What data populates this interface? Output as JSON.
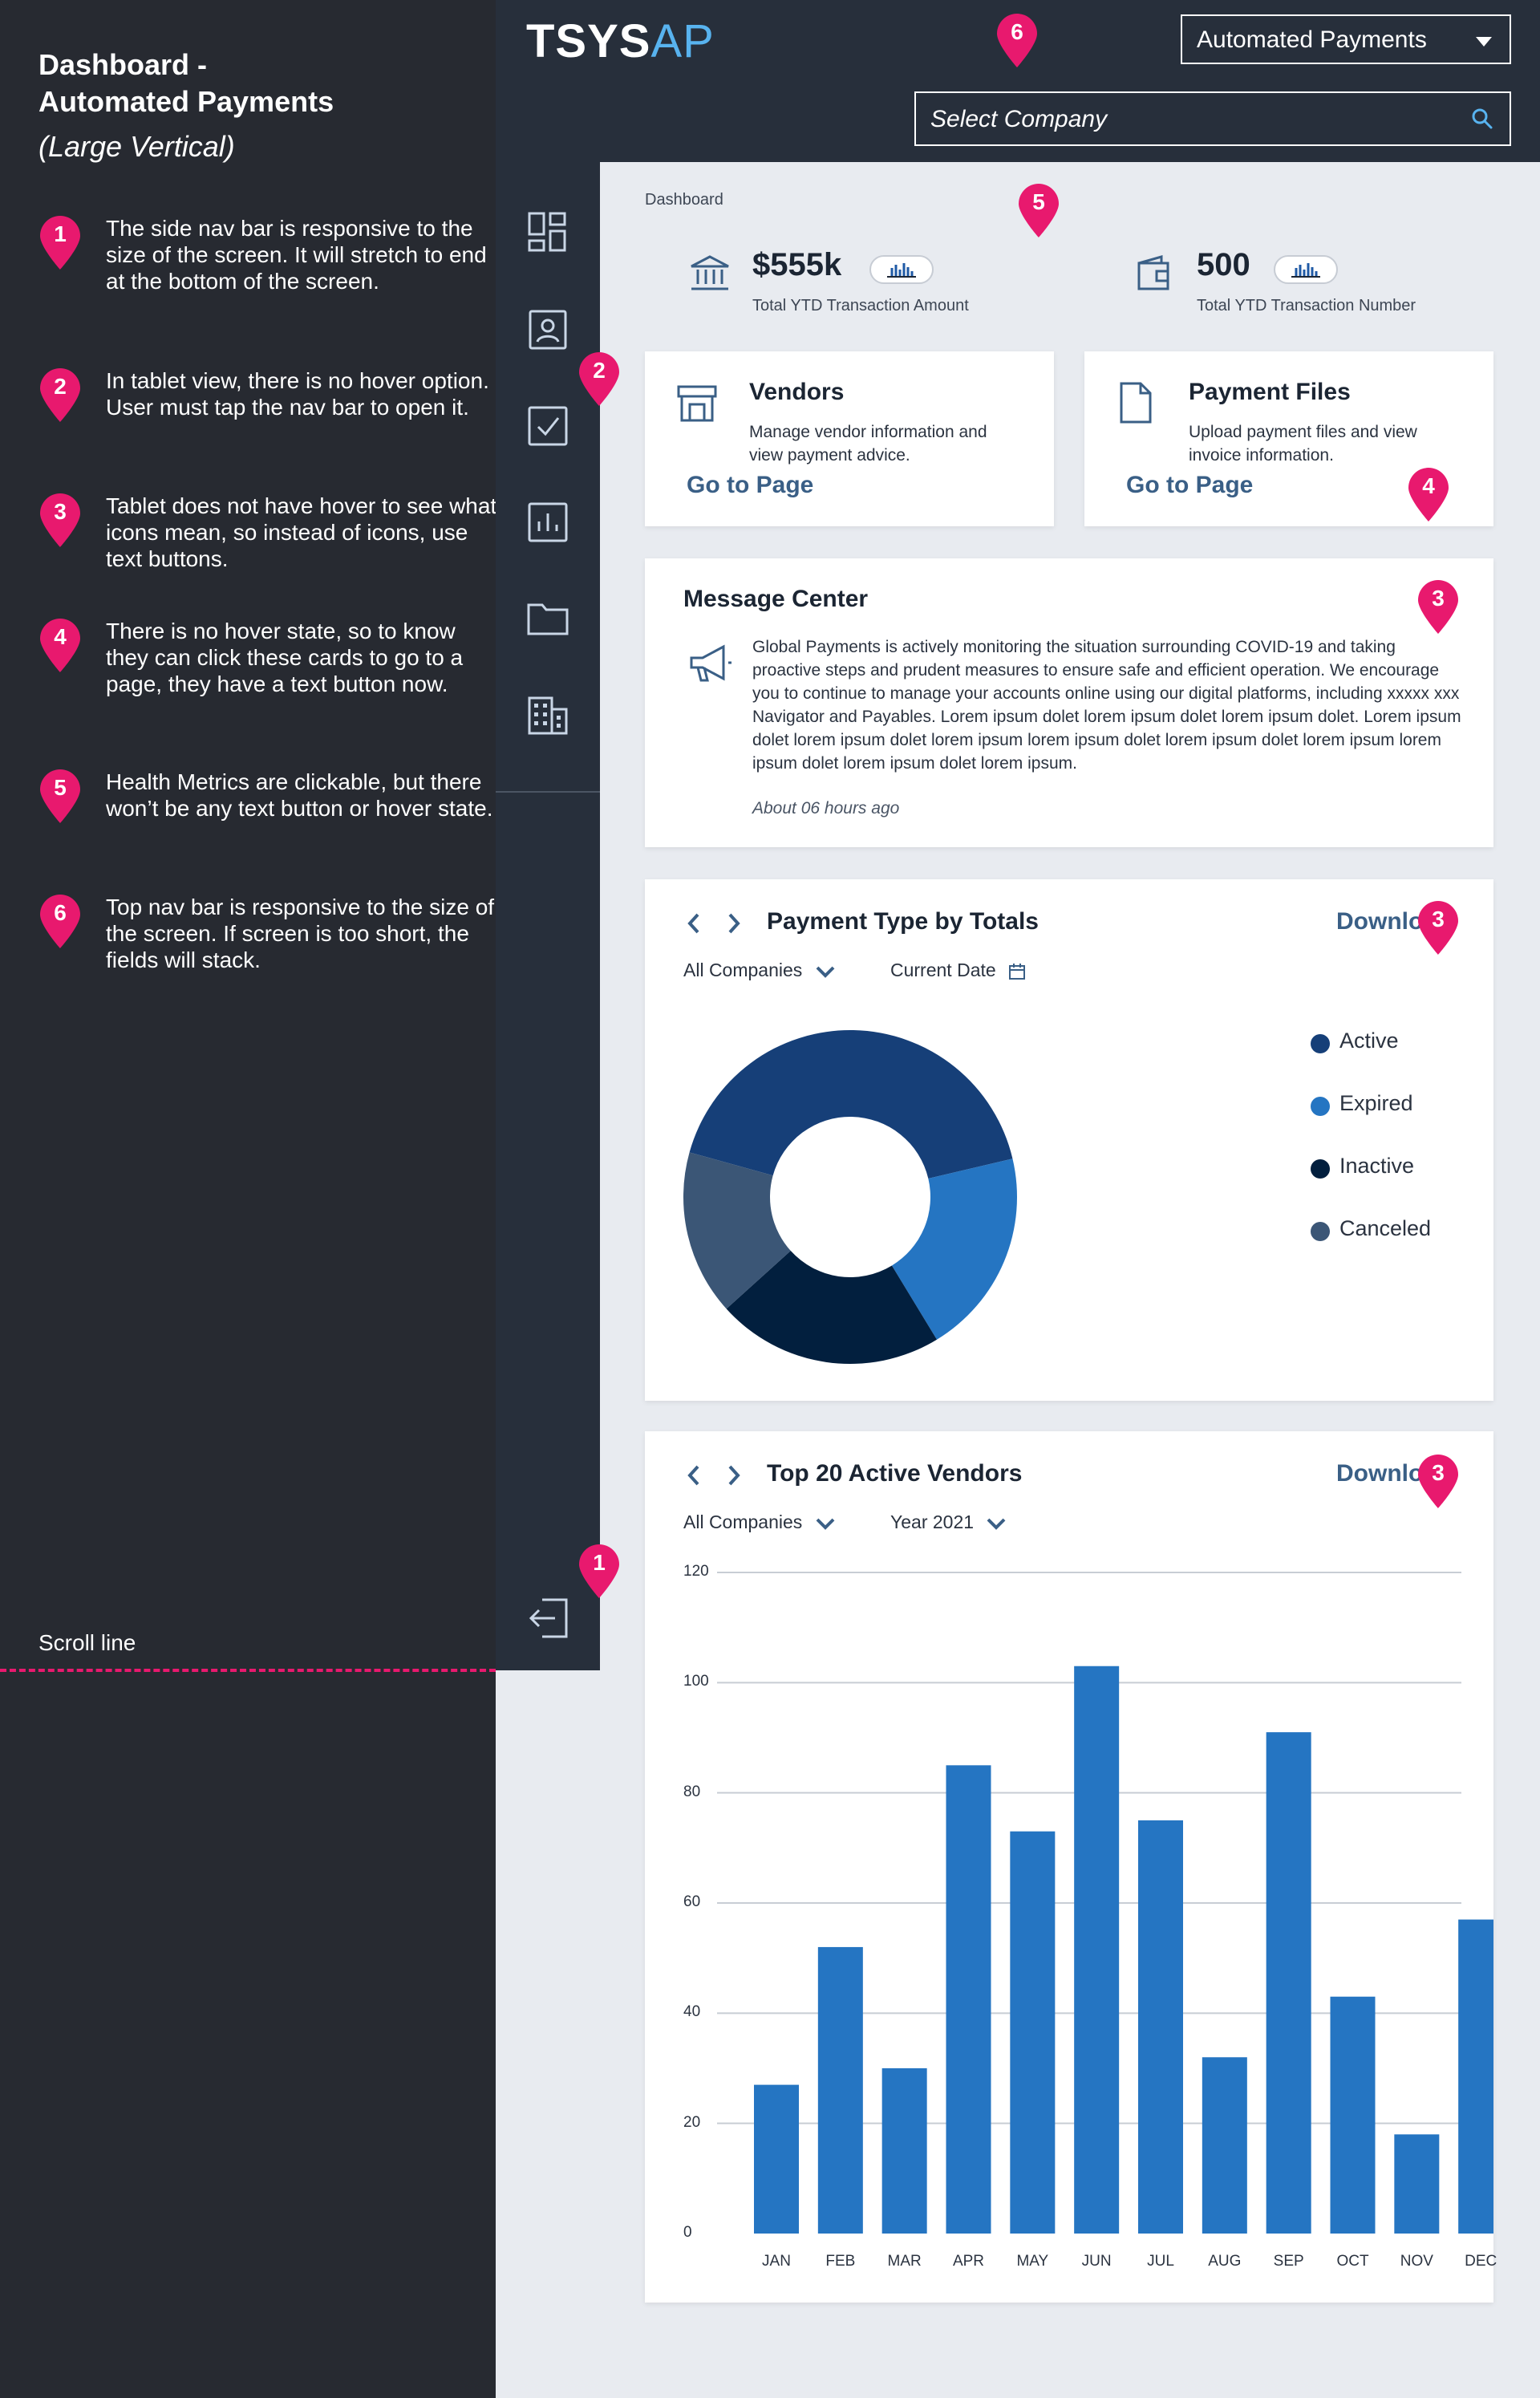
{
  "annotation_panel": {
    "title_line1": "Dashboard -",
    "title_line2": "Automated Payments",
    "subtitle": "(Large Vertical)",
    "notes": [
      {
        "num": "1",
        "text": "The side nav bar is responsive to the size of the screen. It will stretch to end at the bottom of the screen."
      },
      {
        "num": "2",
        "text": "In tablet view, there is no hover option. User must tap the nav bar to open it."
      },
      {
        "num": "3",
        "text": "Tablet does not have hover to see what icons mean, so instead of icons, use text buttons."
      },
      {
        "num": "4",
        "text": "There is no hover state, so to know they can click these cards to go to a page, they have a text button now."
      },
      {
        "num": "5",
        "text": "Health Metrics are clickable, but there won’t be any text button or hover state."
      },
      {
        "num": "6",
        "text": "Top nav bar is responsive to the size of the screen. If screen is too short, the fields will stack."
      }
    ],
    "scroll_label": "Scroll line",
    "pin_color": "#e8196e"
  },
  "markers": [
    "1",
    "2",
    "3",
    "4",
    "5",
    "6"
  ],
  "header": {
    "logo_primary": "TSYS",
    "logo_accent": "AP",
    "app_dropdown": "Automated Payments",
    "search_placeholder": "Select Company"
  },
  "sidenav": {
    "items": [
      "dashboard-icon",
      "contacts-icon",
      "checkbox-icon",
      "reports-icon",
      "folder-icon",
      "building-icon"
    ],
    "logout": "logout-icon"
  },
  "breadcrumb": "Dashboard",
  "metrics": [
    {
      "value": "$555k",
      "label": "Total YTD Transaction Amount",
      "icon": "bank-icon"
    },
    {
      "value": "500",
      "label": "Total YTD Transaction Number",
      "icon": "wallet-icon"
    }
  ],
  "cards": [
    {
      "title": "Vendors",
      "desc": "Manage vendor information and view payment advice.",
      "link": "Go to Page",
      "icon": "store-icon"
    },
    {
      "title": "Payment Files",
      "desc": "Upload payment files and view invoice information.",
      "link": "Go to Page",
      "icon": "file-icon"
    }
  ],
  "message_center": {
    "title": "Message Center",
    "body": "Global Payments is actively monitoring the situation surrounding COVID-19 and taking proactive steps and prudent measures to ensure safe and efficient operation. We encourage you to continue to manage your accounts online using our digital platforms, including xxxxx xxx Navigator and Payables. Lorem ipsum dolet lorem ipsum dolet lorem ipsum dolet. Lorem ipsum dolet lorem ipsum dolet lorem ipsum lorem ipsum dolet lorem ipsum dolet lorem ipsum lorem ipsum dolet lorem ipsum dolet lorem ipsum.",
    "time": "About 06 hours ago"
  },
  "payment_type": {
    "title": "Payment Type by Totals",
    "download": "Downlo",
    "filter1": "All Companies",
    "filter2": "Current Date"
  },
  "top_vendors": {
    "title": "Top 20 Active Vendors",
    "download": "Downlo",
    "filter1": "All Companies",
    "filter2": "Year 2021"
  },
  "chart_data": [
    {
      "type": "pie",
      "donut": true,
      "labels": [
        "Active",
        "Expired",
        "Inactive",
        "Canceled"
      ],
      "values": [
        42,
        20,
        22,
        16
      ],
      "colors": [
        "#163f78",
        "#2575c2",
        "#021f3e",
        "#3b5676"
      ],
      "legend": "right"
    },
    {
      "type": "bar",
      "categories": [
        "JAN",
        "FEB",
        "MAR",
        "APR",
        "MAY",
        "JUN",
        "JUL",
        "AUG",
        "SEP",
        "OCT",
        "NOV",
        "DEC"
      ],
      "values": [
        27,
        52,
        30,
        85,
        73,
        103,
        75,
        32,
        91,
        43,
        18,
        57
      ],
      "ylim": [
        0,
        120
      ],
      "yticks": [
        0,
        20,
        40,
        60,
        80,
        100,
        120
      ],
      "grid": true,
      "color": "#2575c2"
    }
  ]
}
